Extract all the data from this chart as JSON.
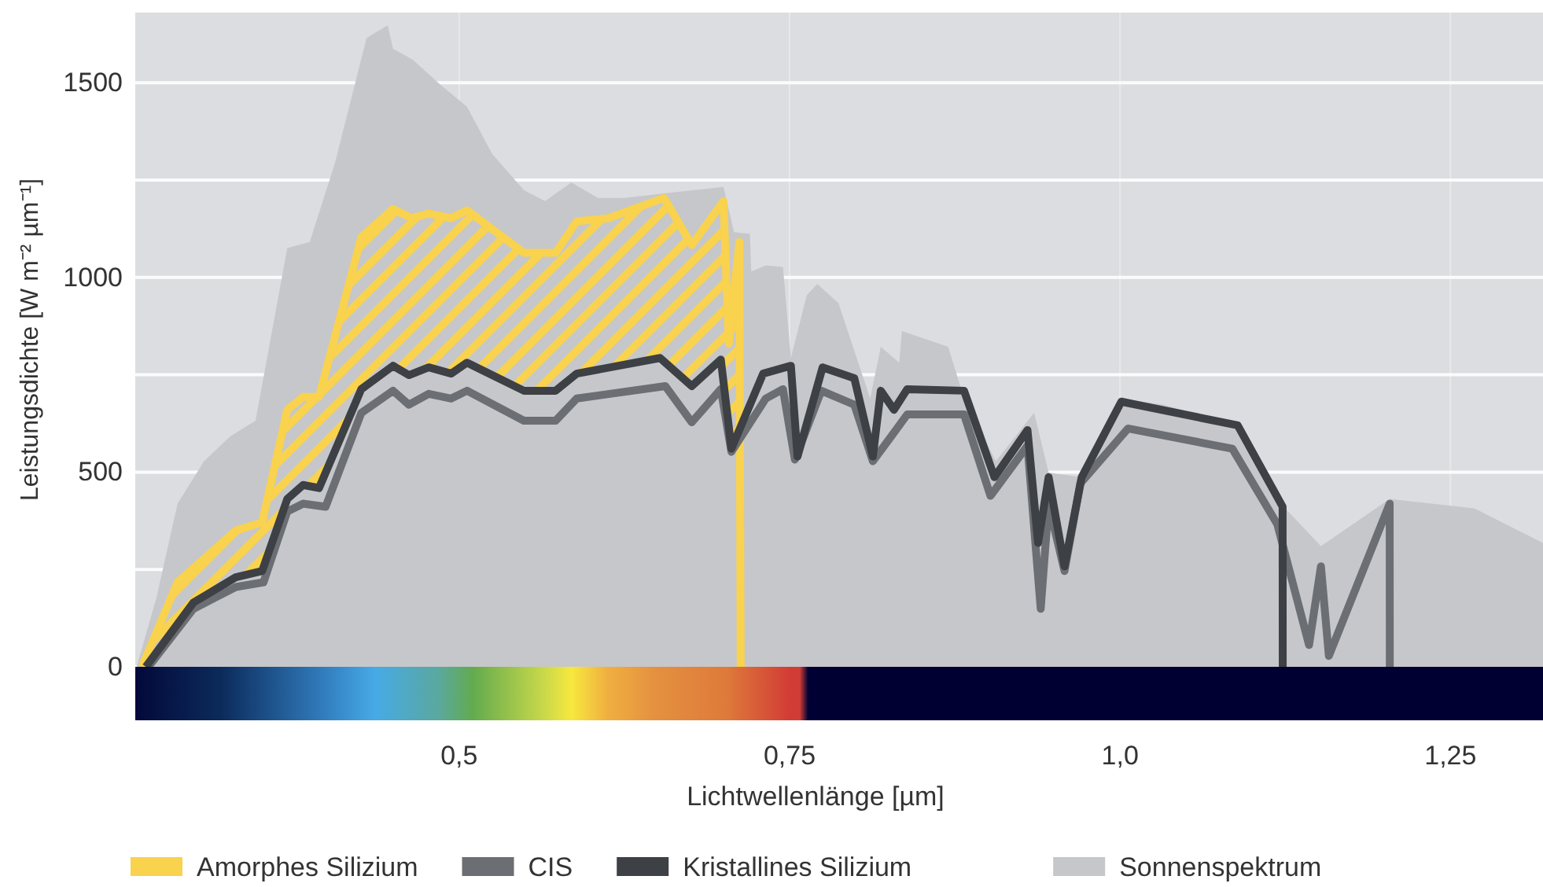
{
  "chart_data": {
    "type": "line",
    "xlabel": "Lichtwellenlänge [µm]",
    "ylabel": "Leistungsdichte [W m⁻² µm⁻¹]",
    "xlim": [
      0.255,
      1.32
    ],
    "ylim": [
      0,
      1680
    ],
    "xticks": [
      {
        "value": 0.5,
        "label": "0,5"
      },
      {
        "value": 0.75,
        "label": "0,75"
      },
      {
        "value": 1.0,
        "label": "1,0"
      },
      {
        "value": 1.25,
        "label": "1,25"
      }
    ],
    "yticks": [
      0,
      {
        "value": 250,
        "label": null
      },
      500,
      {
        "value": 750,
        "label": null
      },
      1000,
      {
        "value": 1250,
        "label": null
      },
      1500
    ],
    "grid": true,
    "legend": "bottom",
    "series": [
      {
        "name": "Amorphes Silizium",
        "type": "area",
        "color": "#f9d24e",
        "x": [
          0.26,
          0.287,
          0.331,
          0.351,
          0.37,
          0.382,
          0.394,
          0.426,
          0.45,
          0.464,
          0.477,
          0.494,
          0.506,
          0.549,
          0.573,
          0.589,
          0.613,
          0.655,
          0.676,
          0.7,
          0.704,
          0.712,
          0.713
        ],
        "values": [
          0,
          217,
          350,
          371,
          660,
          693,
          693,
          1103,
          1176,
          1152,
          1164,
          1152,
          1172,
          1063,
          1063,
          1144,
          1152,
          1204,
          1083,
          1196,
          830,
          1091,
          0
        ]
      },
      {
        "name": "CIS",
        "type": "line",
        "color": "#6b6e72",
        "x": [
          0.265,
          0.299,
          0.331,
          0.352,
          0.37,
          0.382,
          0.399,
          0.426,
          0.45,
          0.462,
          0.477,
          0.494,
          0.506,
          0.549,
          0.573,
          0.589,
          0.656,
          0.676,
          0.698,
          0.706,
          0.732,
          0.745,
          0.754,
          0.774,
          0.799,
          0.813,
          0.827,
          0.839,
          0.882,
          0.902,
          0.93,
          0.94,
          0.946,
          0.958,
          0.97,
          1.006,
          1.085,
          1.119,
          1.143,
          1.152,
          1.158,
          1.204,
          1.2041
        ],
        "values": [
          0,
          149,
          205,
          217,
          399,
          419,
          411,
          652,
          709,
          673,
          701,
          689,
          709,
          632,
          632,
          689,
          721,
          628,
          713,
          552,
          689,
          713,
          532,
          709,
          673,
          528,
          592,
          648,
          648,
          439,
          568,
          149,
          419,
          246,
          471,
          612,
          560,
          366,
          56,
          258,
          28,
          419,
          0
        ]
      },
      {
        "name": "Kristallines Silizium",
        "type": "line",
        "color": "#3d4044",
        "x": [
          0.263,
          0.299,
          0.331,
          0.351,
          0.37,
          0.382,
          0.394,
          0.426,
          0.45,
          0.462,
          0.477,
          0.494,
          0.506,
          0.525,
          0.549,
          0.573,
          0.589,
          0.652,
          0.676,
          0.698,
          0.706,
          0.73,
          0.751,
          0.756,
          0.775,
          0.799,
          0.813,
          0.819,
          0.829,
          0.839,
          0.882,
          0.905,
          0.93,
          0.938,
          0.946,
          0.958,
          0.971,
          1.001,
          1.089,
          1.123,
          1.1231
        ],
        "values": [
          0,
          165,
          230,
          246,
          431,
          467,
          459,
          713,
          773,
          749,
          769,
          753,
          781,
          749,
          709,
          709,
          753,
          793,
          721,
          789,
          560,
          753,
          773,
          540,
          769,
          741,
          540,
          709,
          660,
          713,
          709,
          487,
          608,
          318,
          487,
          258,
          487,
          681,
          620,
          411,
          0
        ]
      },
      {
        "name": "Sonnenspektrum",
        "type": "area",
        "color": "#c6c7ca",
        "x": [
          0.256,
          0.271,
          0.287,
          0.307,
          0.327,
          0.346,
          0.37,
          0.387,
          0.406,
          0.43,
          0.446,
          0.45,
          0.465,
          0.486,
          0.506,
          0.525,
          0.549,
          0.565,
          0.585,
          0.605,
          0.625,
          0.656,
          0.7,
          0.708,
          0.72,
          0.721,
          0.732,
          0.745,
          0.751,
          0.763,
          0.771,
          0.787,
          0.811,
          0.819,
          0.833,
          0.835,
          0.87,
          0.882,
          0.906,
          0.935,
          0.946,
          0.97,
          1.001,
          1.033,
          1.089,
          1.125,
          1.152,
          1.204,
          1.268,
          1.32
        ],
        "values": [
          0,
          177,
          419,
          528,
          592,
          632,
          1075,
          1091,
          1293,
          1615,
          1647,
          1587,
          1559,
          1494,
          1438,
          1317,
          1224,
          1196,
          1244,
          1204,
          1204,
          1216,
          1232,
          1116,
          1112,
          1015,
          1031,
          1027,
          793,
          954,
          983,
          934,
          689,
          822,
          781,
          862,
          822,
          689,
          528,
          652,
          499,
          487,
          689,
          673,
          620,
          407,
          310,
          431,
          407,
          318
        ]
      }
    ]
  }
}
